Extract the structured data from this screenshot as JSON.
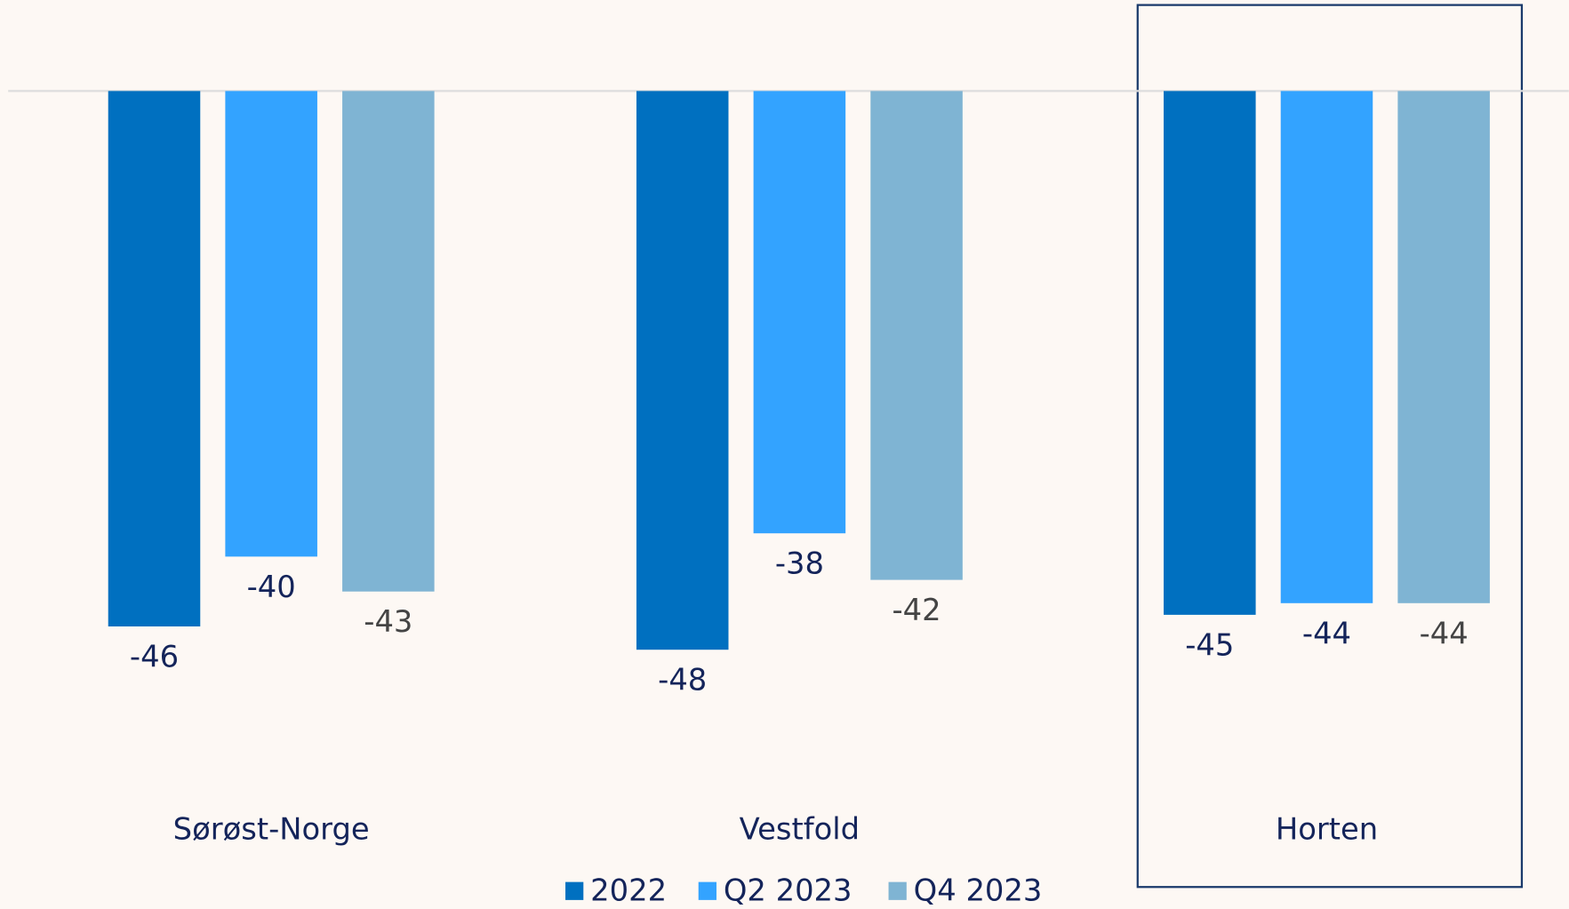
{
  "chart_data": {
    "type": "bar",
    "categories": [
      "Sørøst-Norge",
      "Vestfold",
      "Horten"
    ],
    "series": [
      {
        "name": "2022",
        "color": "#0070c0",
        "values": [
          -46,
          -48,
          -45
        ]
      },
      {
        "name": "Q2 2023",
        "color": "#33a3ff",
        "values": [
          -40,
          -38,
          -44
        ]
      },
      {
        "name": "Q4 2023",
        "color": "#7fb4d3",
        "values": [
          -43,
          -42,
          -44
        ]
      }
    ],
    "ylim": [
      -50,
      0
    ]
  }
}
